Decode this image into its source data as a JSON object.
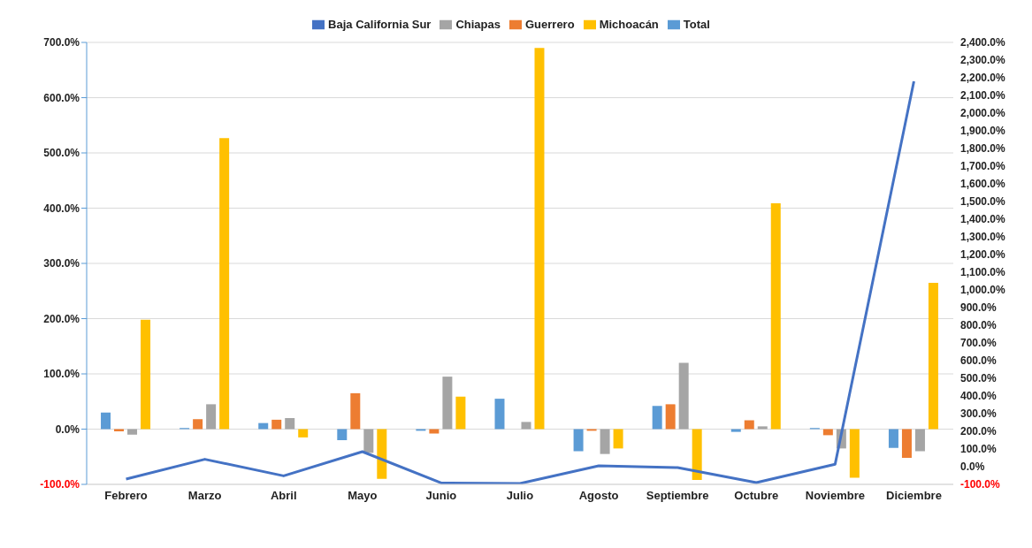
{
  "chart_data": {
    "type": "bar",
    "categories": [
      "Febrero",
      "Marzo",
      "Abril",
      "Mayo",
      "Junio",
      "Julio",
      "Agosto",
      "Septiembre",
      "Octubre",
      "Noviembre",
      "Diciembre"
    ],
    "series": [
      {
        "name": "Total",
        "color": "#5b9bd5",
        "values": [
          30,
          2,
          11,
          -20,
          -3,
          55,
          -40,
          42,
          -5,
          2,
          -34
        ]
      },
      {
        "name": "Guerrero",
        "color": "#ed7d31",
        "values": [
          -4,
          18,
          17,
          65,
          -8,
          null,
          -3,
          45,
          16,
          -11,
          -52
        ]
      },
      {
        "name": "Chiapas",
        "color": "#a5a5a5",
        "values": [
          -10,
          45,
          20,
          -43,
          95,
          13,
          -45,
          120,
          5,
          -35,
          -40
        ]
      },
      {
        "name": "Michoacán",
        "color": "#ffc000",
        "values": [
          198,
          527,
          -15,
          -90,
          59,
          690,
          -35,
          -92,
          409,
          -88,
          265
        ]
      },
      {
        "name": "Baja California Sur",
        "type": "line",
        "axis": "y2",
        "color": "#4472c4",
        "values": [
          -70,
          42,
          -52,
          85,
          -92,
          -95,
          5,
          -5,
          -90,
          14,
          2180
        ]
      }
    ],
    "ylim": [
      -100,
      700
    ],
    "yticks": [
      {
        "value": -100,
        "label": "-100.0%"
      },
      {
        "value": 0,
        "label": "0.0%"
      },
      {
        "value": 100,
        "label": "100.0%"
      },
      {
        "value": 200,
        "label": "200.0%"
      },
      {
        "value": 300,
        "label": "300.0%"
      },
      {
        "value": 400,
        "label": "400.0%"
      },
      {
        "value": 500,
        "label": "500.0%"
      },
      {
        "value": 600,
        "label": "600.0%"
      },
      {
        "value": 700,
        "label": "700.0%"
      }
    ],
    "y2lim": [
      -100,
      2400
    ],
    "y2ticks": [
      {
        "value": -100,
        "label": "-100.0%"
      },
      {
        "value": 0,
        "label": "0.0%"
      },
      {
        "value": 100,
        "label": "100.0%"
      },
      {
        "value": 200,
        "label": "200.0%"
      },
      {
        "value": 300,
        "label": "300.0%"
      },
      {
        "value": 400,
        "label": "400.0%"
      },
      {
        "value": 500,
        "label": "500.0%"
      },
      {
        "value": 600,
        "label": "600.0%"
      },
      {
        "value": 700,
        "label": "700.0%"
      },
      {
        "value": 800,
        "label": "800.0%"
      },
      {
        "value": 900,
        "label": "900.0%"
      },
      {
        "value": 1000,
        "label": "1,000.0%"
      },
      {
        "value": 1100,
        "label": "1,100.0%"
      },
      {
        "value": 1200,
        "label": "1,200.0%"
      },
      {
        "value": 1300,
        "label": "1,300.0%"
      },
      {
        "value": 1400,
        "label": "1,400.0%"
      },
      {
        "value": 1500,
        "label": "1,500.0%"
      },
      {
        "value": 1600,
        "label": "1,600.0%"
      },
      {
        "value": 1700,
        "label": "1,700.0%"
      },
      {
        "value": 1800,
        "label": "1,800.0%"
      },
      {
        "value": 1900,
        "label": "1,900.0%"
      },
      {
        "value": 2000,
        "label": "2,000.0%"
      },
      {
        "value": 2100,
        "label": "2,100.0%"
      },
      {
        "value": 2200,
        "label": "2,200.0%"
      },
      {
        "value": 2300,
        "label": "2,300.0%"
      },
      {
        "value": 2400,
        "label": "2,400.0%"
      }
    ],
    "grid": "y",
    "legend": "top",
    "marker": "none",
    "line_style": "solid"
  }
}
